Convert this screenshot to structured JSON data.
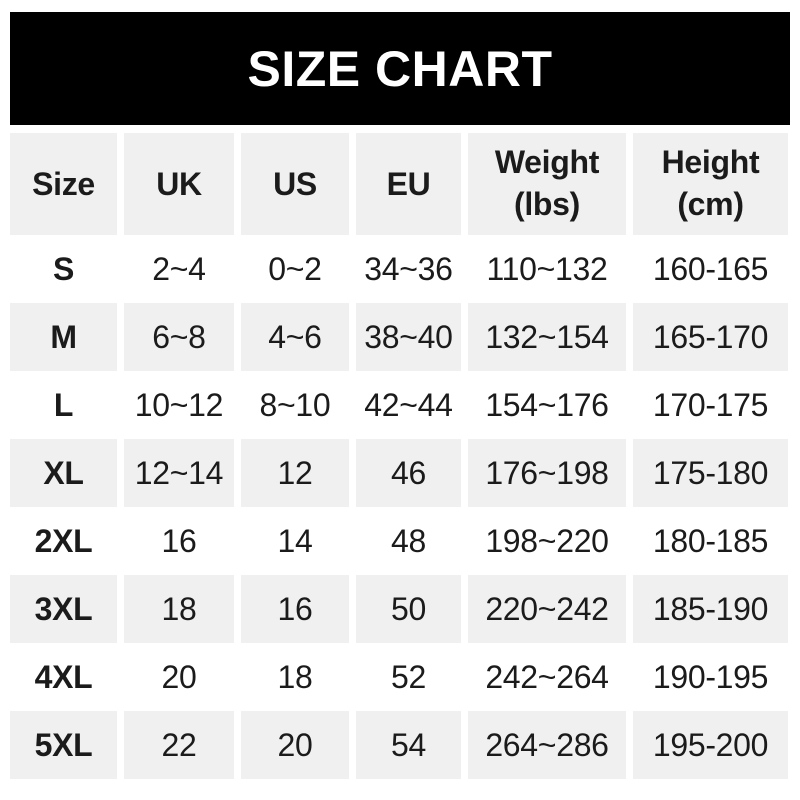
{
  "banner": {
    "title": "SIZE CHART",
    "bg_color": "#000000",
    "text_color": "#ffffff"
  },
  "table": {
    "header_bg": "#f0f0f1",
    "alt_row_bg": "#f0f0f1",
    "text_color": "#1b1b1b",
    "columns": [
      {
        "key": "size",
        "label": "Size"
      },
      {
        "key": "uk",
        "label": "UK"
      },
      {
        "key": "us",
        "label": "US"
      },
      {
        "key": "eu",
        "label": "EU"
      },
      {
        "key": "weight",
        "label": "Weight (lbs)",
        "label_line1": "Weight",
        "label_line2": "(lbs)"
      },
      {
        "key": "height",
        "label": "Height (cm)",
        "label_line1": "Height",
        "label_line2": "(cm)"
      }
    ],
    "rows": [
      {
        "size": "S",
        "uk": "2~4",
        "us": "0~2",
        "eu": "34~36",
        "weight": "110~132",
        "height": "160-165"
      },
      {
        "size": "M",
        "uk": "6~8",
        "us": "4~6",
        "eu": "38~40",
        "weight": "132~154",
        "height": "165-170"
      },
      {
        "size": "L",
        "uk": "10~12",
        "us": "8~10",
        "eu": "42~44",
        "weight": "154~176",
        "height": "170-175"
      },
      {
        "size": "XL",
        "uk": "12~14",
        "us": "12",
        "eu": "46",
        "weight": "176~198",
        "height": "175-180"
      },
      {
        "size": "2XL",
        "uk": "16",
        "us": "14",
        "eu": "48",
        "weight": "198~220",
        "height": "180-185"
      },
      {
        "size": "3XL",
        "uk": "18",
        "us": "16",
        "eu": "50",
        "weight": "220~242",
        "height": "185-190"
      },
      {
        "size": "4XL",
        "uk": "20",
        "us": "18",
        "eu": "52",
        "weight": "242~264",
        "height": "190-195"
      },
      {
        "size": "5XL",
        "uk": "22",
        "us": "20",
        "eu": "54",
        "weight": "264~286",
        "height": "195-200"
      }
    ]
  },
  "chart_data": {
    "type": "table",
    "title": "SIZE CHART",
    "columns": [
      "Size",
      "UK",
      "US",
      "EU",
      "Weight (lbs)",
      "Height (cm)"
    ],
    "rows": [
      [
        "S",
        "2~4",
        "0~2",
        "34~36",
        "110~132",
        "160-165"
      ],
      [
        "M",
        "6~8",
        "4~6",
        "38~40",
        "132~154",
        "165-170"
      ],
      [
        "L",
        "10~12",
        "8~10",
        "42~44",
        "154~176",
        "170-175"
      ],
      [
        "XL",
        "12~14",
        "12",
        "46",
        "176~198",
        "175-180"
      ],
      [
        "2XL",
        "16",
        "14",
        "48",
        "198~220",
        "180-185"
      ],
      [
        "3XL",
        "18",
        "16",
        "50",
        "220~242",
        "185-190"
      ],
      [
        "4XL",
        "20",
        "18",
        "52",
        "242~264",
        "190-195"
      ],
      [
        "5XL",
        "22",
        "20",
        "54",
        "264~286",
        "195-200"
      ]
    ],
    "layout": {
      "header_background": "#f0f0f1",
      "alternating_rows": true,
      "row_order_backgrounds": [
        "white",
        "gray",
        "white",
        "gray",
        "white",
        "gray",
        "white",
        "gray"
      ]
    }
  }
}
